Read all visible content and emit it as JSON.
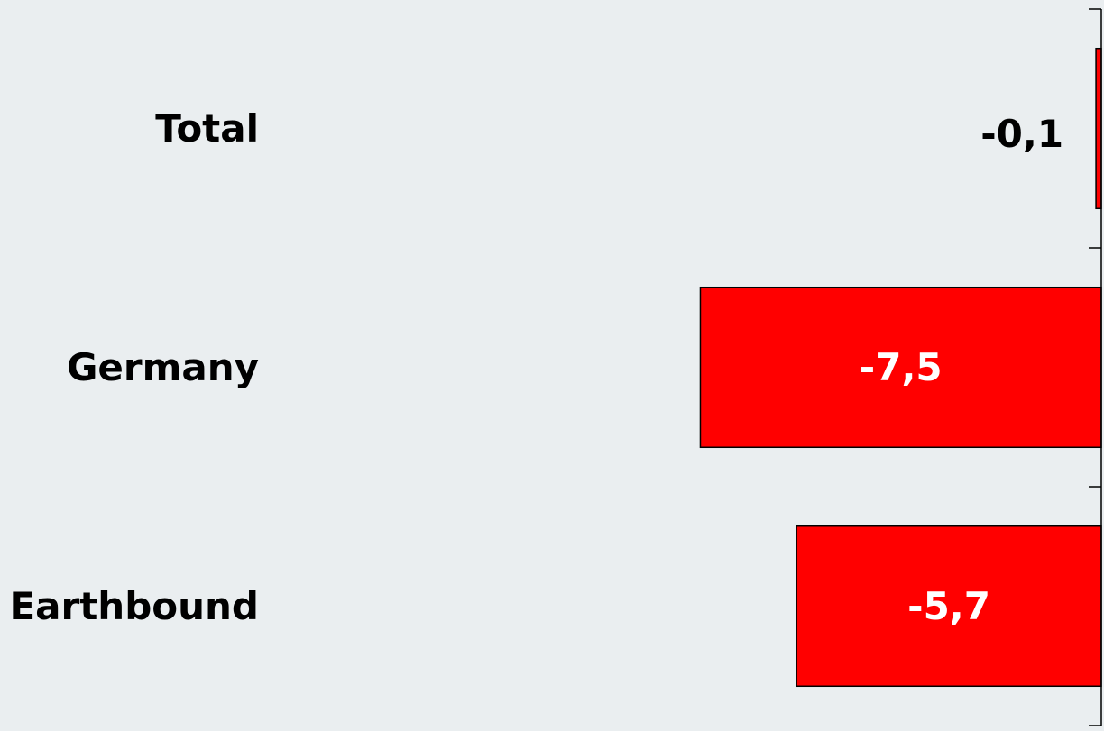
{
  "chart_data": {
    "type": "bar",
    "orientation": "horizontal",
    "categories": [
      "Total",
      "Germany",
      "Earthbound"
    ],
    "values": [
      -0.1,
      -7.5,
      -5.7
    ],
    "value_labels": [
      "-0,1",
      "-7,5",
      "-5,7"
    ],
    "color": "#ff0000",
    "xlim": [
      -20.6,
      0
    ]
  }
}
